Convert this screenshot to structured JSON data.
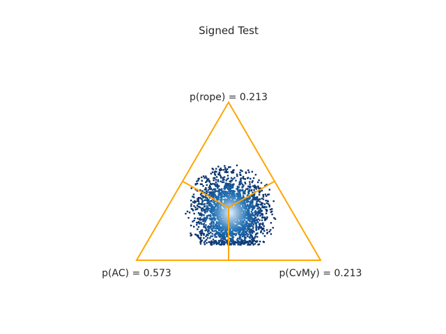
{
  "chart_data": {
    "type": "scatter",
    "title": "Signed Test",
    "vertices": [
      {
        "key": "rope",
        "label": "p(rope) = 0.213",
        "probability": 0.213
      },
      {
        "key": "AC",
        "label": "p(AC) = 0.573",
        "probability": 0.573
      },
      {
        "key": "CvMy",
        "label": "p(CvMy) = 0.213",
        "probability": 0.213
      }
    ],
    "frame_color": "#FFA500",
    "density_colors": {
      "low": "#08306b",
      "mid": "#2171b5",
      "high": "#deebf7"
    },
    "sample_cloud": {
      "center_barycentric": {
        "AC": 0.34,
        "rope": 0.3,
        "CvMy": 0.36
      },
      "spread": 0.09
    },
    "grid": false,
    "legend": "none"
  }
}
